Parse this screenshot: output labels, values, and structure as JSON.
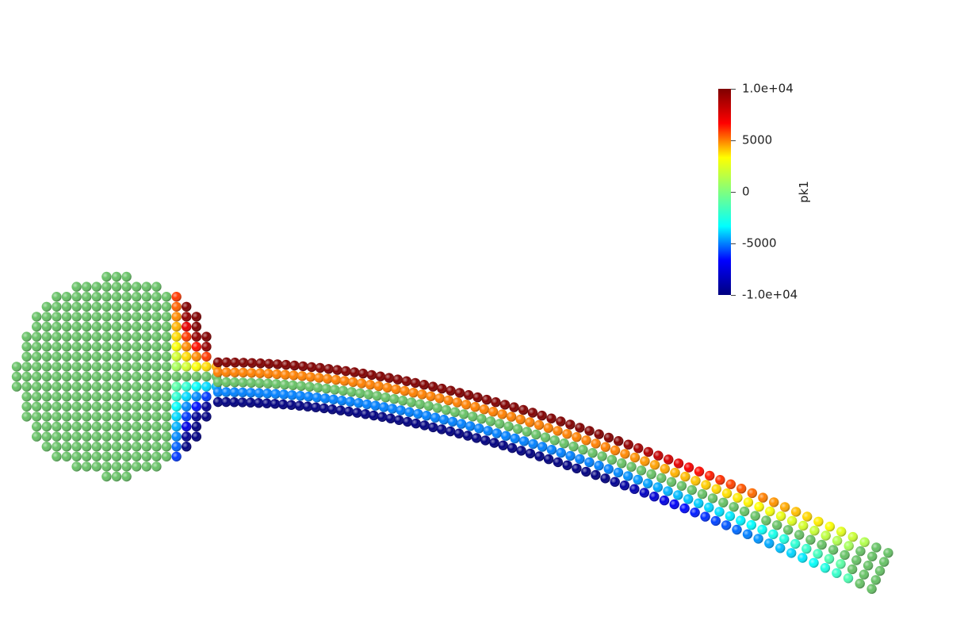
{
  "scalar_bar": {
    "title": "pk1",
    "labels": [
      "1.0e+04",
      "5000",
      "0",
      "-5000",
      "-1.0e+04"
    ],
    "values": [
      10000,
      5000,
      0,
      -5000,
      -10000
    ],
    "range": [
      -10000,
      10000
    ],
    "colormap": "jet",
    "colormap_stops": [
      "#00007f",
      "#0000ff",
      "#00ffff",
      "#7fff7f",
      "#ffff00",
      "#ff0000",
      "#7f0000"
    ]
  },
  "scene": {
    "description_type": "particle-beam",
    "background_color": "#ffffff",
    "neutral_color": "#67c266"
  }
}
